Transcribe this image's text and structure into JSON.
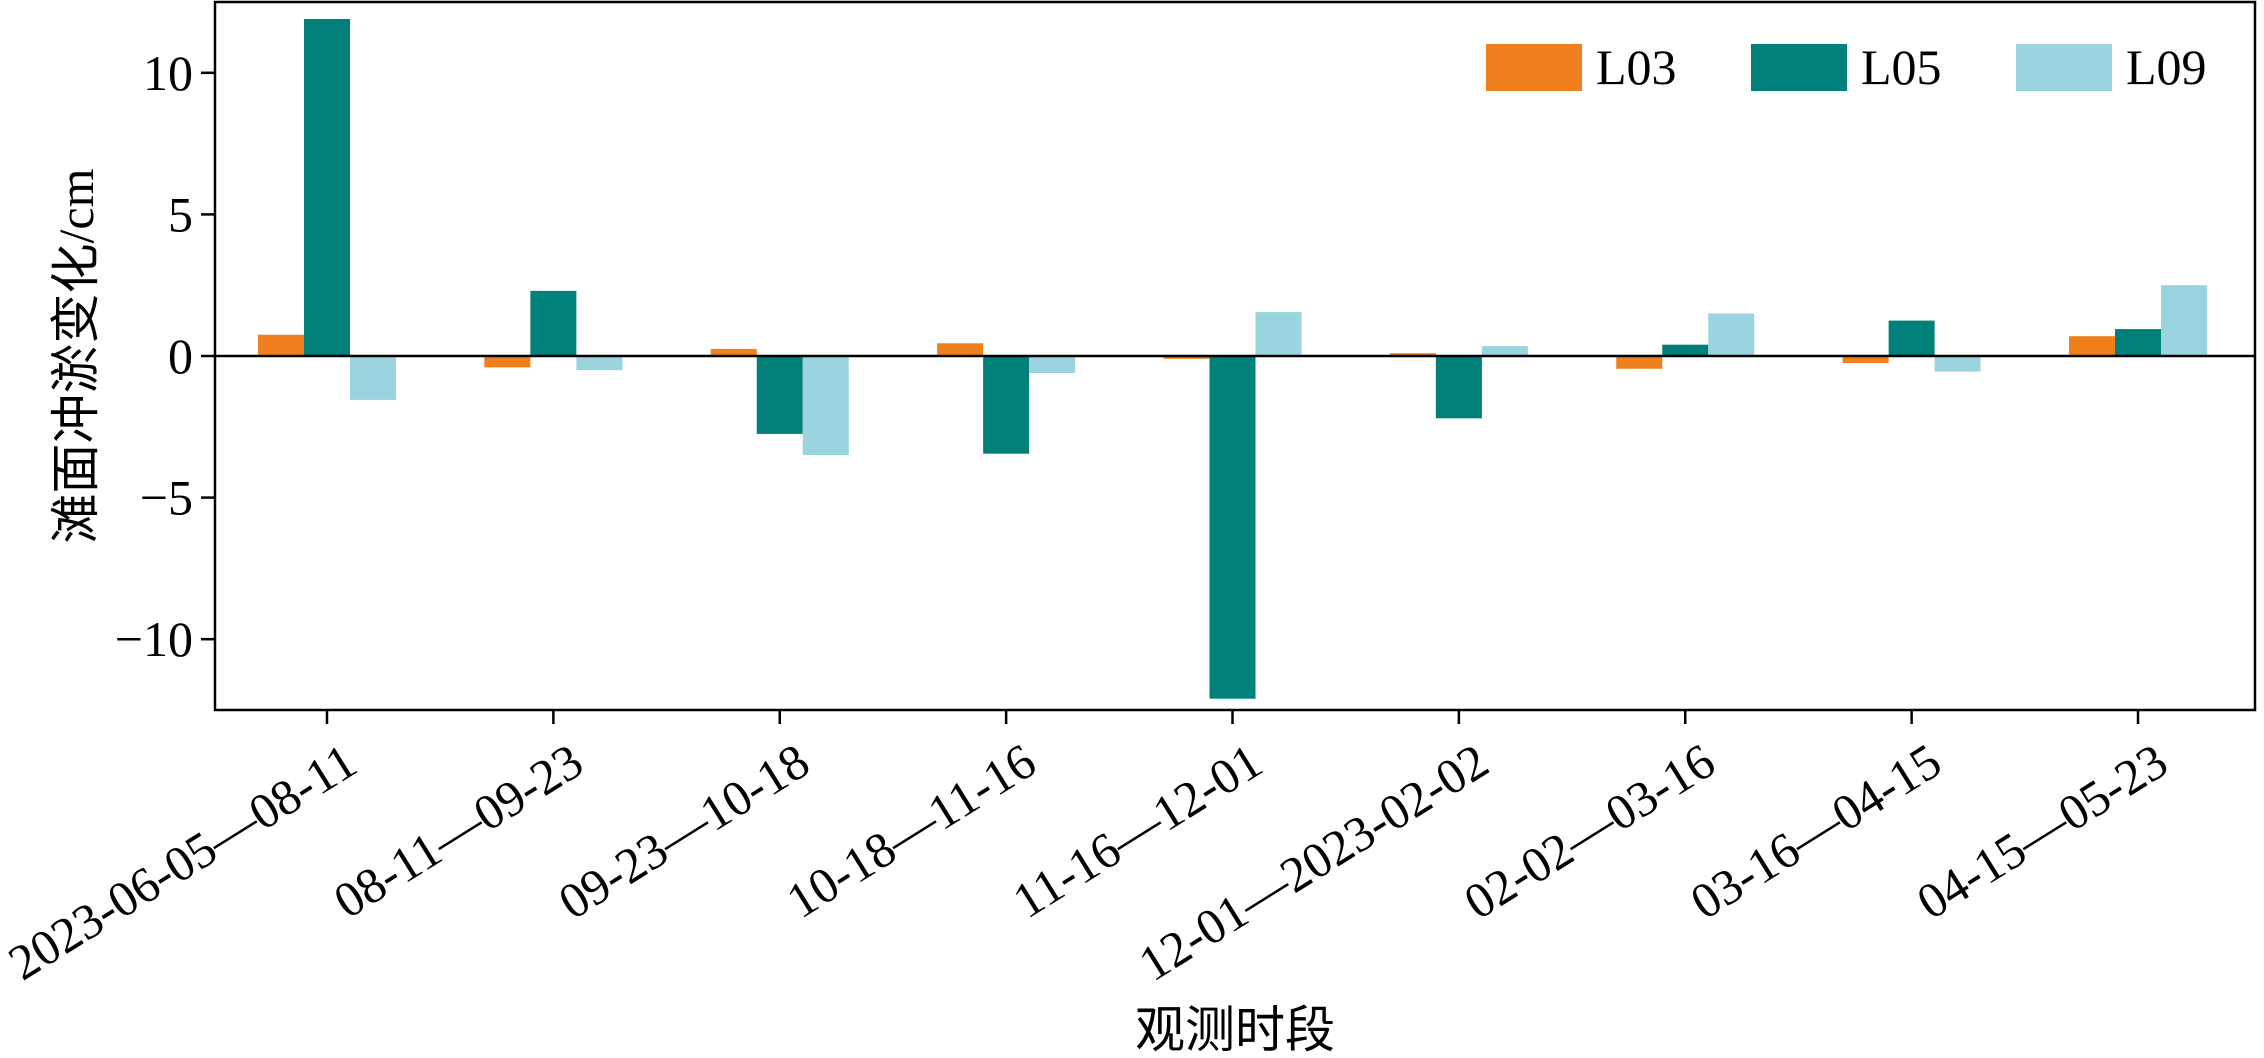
{
  "chart_data": {
    "type": "bar",
    "title": "",
    "xlabel": "观测时段",
    "ylabel": "滩面冲淤变化/cm",
    "categories": [
      "2023-06-05—08-11",
      "08-11—09-23",
      "09-23—10-18",
      "10-18—11-16",
      "11-16—12-01",
      "12-01—2023-02-02",
      "02-02—03-16",
      "03-16—04-15",
      "04-15—05-23"
    ],
    "series": [
      {
        "name": "L03",
        "color": "#F0801E",
        "values": [
          0.75,
          -0.4,
          0.25,
          0.45,
          -0.1,
          0.1,
          -0.45,
          -0.25,
          0.7
        ]
      },
      {
        "name": "L05",
        "color": "#007F7B",
        "values": [
          11.9,
          2.3,
          -2.75,
          -3.45,
          -12.1,
          -2.2,
          0.4,
          1.25,
          0.95
        ]
      },
      {
        "name": "L09",
        "color": "#9AD4DE",
        "values": [
          -1.55,
          -0.5,
          -3.5,
          -0.6,
          1.55,
          0.35,
          1.5,
          -0.55,
          2.5
        ]
      }
    ],
    "ylim": [
      -12.5,
      12.5
    ],
    "yticks": [
      -10,
      -5,
      0,
      5,
      10
    ],
    "ytick_labels": [
      "−10",
      "−5",
      "0",
      "5",
      "10"
    ],
    "zero_line": true,
    "grid": false,
    "legend_position": "top-right"
  }
}
